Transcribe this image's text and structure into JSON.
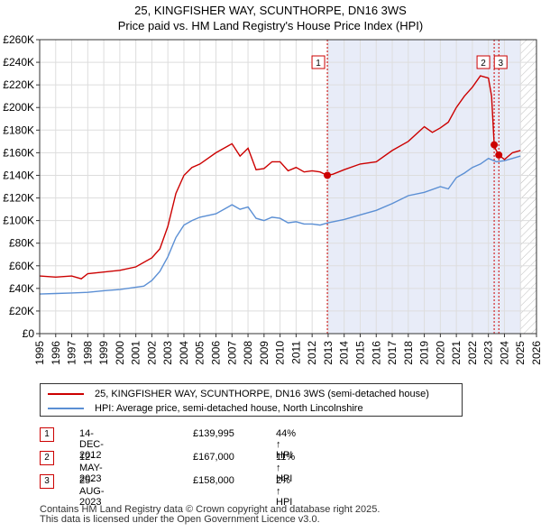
{
  "chart_data": {
    "type": "line",
    "title": "25, KINGFISHER WAY, SCUNTHORPE, DN16 3WS",
    "subtitle": "Price paid vs. HM Land Registry's House Price Index (HPI)",
    "xlim": [
      1995,
      2026
    ],
    "ylim": [
      0,
      260000
    ],
    "x_ticks": [
      1995,
      1996,
      1997,
      1998,
      1999,
      2000,
      2001,
      2002,
      2003,
      2004,
      2005,
      2006,
      2007,
      2008,
      2009,
      2010,
      2011,
      2012,
      2013,
      2014,
      2015,
      2016,
      2017,
      2018,
      2019,
      2020,
      2021,
      2022,
      2023,
      2024,
      2025,
      2026
    ],
    "y_ticks": [
      0,
      20000,
      40000,
      60000,
      80000,
      100000,
      120000,
      140000,
      160000,
      180000,
      200000,
      220000,
      240000,
      260000
    ],
    "y_tick_labels": [
      "£0",
      "£20K",
      "£40K",
      "£60K",
      "£80K",
      "£100K",
      "£120K",
      "£140K",
      "£160K",
      "£180K",
      "£200K",
      "£220K",
      "£240K",
      "£260K"
    ],
    "shaded_range": [
      2012.95,
      2025.0
    ],
    "hatched_range": [
      2025.0,
      2026.0
    ],
    "series": [
      {
        "name": "25, KINGFISHER WAY, SCUNTHORPE, DN16 3WS (semi-detached house)",
        "color": "#cc0000",
        "x": [
          1995,
          1996,
          1997,
          1997.6,
          1998,
          1999,
          2000,
          2001,
          2002,
          2002.5,
          2003,
          2003.5,
          2004,
          2004.5,
          2005,
          2006,
          2007,
          2007.5,
          2008,
          2008.5,
          2009,
          2009.5,
          2010,
          2010.5,
          2011,
          2011.5,
          2012,
          2012.5,
          2012.95,
          2013.3,
          2014,
          2015,
          2016,
          2017,
          2018,
          2019,
          2019.5,
          2020,
          2020.5,
          2021,
          2021.5,
          2022,
          2022.5,
          2023.0,
          2023.2,
          2023.36,
          2023.45,
          2023.65,
          2024,
          2024.5,
          2025
        ],
        "values": [
          51000,
          50000,
          51000,
          48500,
          53000,
          54500,
          56000,
          59000,
          67000,
          75000,
          95000,
          124000,
          140000,
          147000,
          150000,
          160000,
          168000,
          157000,
          164000,
          145000,
          146000,
          152000,
          152000,
          144000,
          147000,
          143000,
          144000,
          143000,
          139995,
          141000,
          145000,
          150000,
          152000,
          162000,
          170000,
          183000,
          178000,
          182000,
          187000,
          200000,
          210000,
          218000,
          228000,
          226000,
          210000,
          167000,
          163000,
          158000,
          154000,
          160000,
          162000
        ],
        "markers": [
          {
            "label": "1",
            "x": 2012.95,
            "y": 139995
          },
          {
            "label": "2",
            "x": 2023.36,
            "y": 167000
          },
          {
            "label": "3",
            "x": 2023.65,
            "y": 158000
          }
        ]
      },
      {
        "name": "HPI: Average price, semi-detached house, North Lincolnshire",
        "color": "#5b8fd4",
        "x": [
          1995,
          1996,
          1997,
          1998,
          1999,
          2000,
          2001,
          2001.5,
          2002,
          2002.5,
          2003,
          2003.5,
          2004,
          2004.5,
          2005,
          2006,
          2007,
          2007.5,
          2008,
          2008.5,
          2009,
          2009.5,
          2010,
          2010.5,
          2011,
          2011.5,
          2012,
          2012.5,
          2013,
          2014,
          2015,
          2016,
          2017,
          2018,
          2019,
          2020,
          2020.5,
          2021,
          2021.5,
          2022,
          2022.5,
          2023,
          2023.5,
          2024,
          2024.5,
          2025
        ],
        "values": [
          35000,
          35500,
          36000,
          36500,
          38000,
          39000,
          41000,
          42000,
          47000,
          55000,
          68000,
          85000,
          96000,
          100000,
          103000,
          106000,
          114000,
          110000,
          112000,
          102000,
          100000,
          103000,
          102000,
          98000,
          99000,
          97000,
          97000,
          96000,
          98000,
          101000,
          105000,
          109000,
          115000,
          122000,
          125000,
          130000,
          128000,
          138000,
          142000,
          147000,
          150000,
          155000,
          152000,
          153000,
          155000,
          157000
        ]
      }
    ],
    "legend": [
      "25, KINGFISHER WAY, SCUNTHORPE, DN16 3WS (semi-detached house)",
      "HPI: Average price, semi-detached house, North Lincolnshire"
    ]
  },
  "sales": [
    {
      "num": "1",
      "date": "14-DEC-2012",
      "price": "£139,995",
      "pct": "44% ↑ HPI"
    },
    {
      "num": "2",
      "date": "12-MAY-2023",
      "price": "£167,000",
      "pct": "11% ↑ HPI"
    },
    {
      "num": "3",
      "date": "25-AUG-2023",
      "price": "£158,000",
      "pct": "2% ↑ HPI"
    }
  ],
  "footer": {
    "line1": "Contains HM Land Registry data © Crown copyright and database right 2025.",
    "line2": "This data is licensed under the Open Government Licence v3.0."
  }
}
